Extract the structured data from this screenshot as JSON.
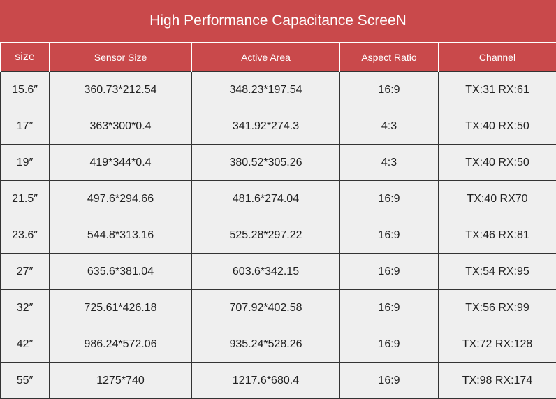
{
  "title": "High Performance Capacitance ScreeN",
  "headers": [
    "size",
    "Sensor  Size",
    "Active Area",
    "Aspect Ratio",
    "Channel"
  ],
  "rows": [
    [
      "15.6″",
      "360.73*212.54",
      "348.23*197.54",
      "16:9",
      "TX:31  RX:61"
    ],
    [
      "17″",
      "363*300*0.4",
      "341.92*274.3",
      "4:3",
      "TX:40  RX:50"
    ],
    [
      "19″",
      "419*344*0.4",
      "380.52*305.26",
      "4:3",
      "TX:40  RX:50"
    ],
    [
      "21.5″",
      "497.6*294.66",
      "481.6*274.04",
      "16:9",
      "TX:40  RX70"
    ],
    [
      "23.6″",
      "544.8*313.16",
      "525.28*297.22",
      "16:9",
      "TX:46  RX:81"
    ],
    [
      "27″",
      "635.6*381.04",
      "603.6*342.15",
      "16:9",
      "TX:54  RX:95"
    ],
    [
      "32″",
      "725.61*426.18",
      "707.92*402.58",
      "16:9",
      "TX:56  RX:99"
    ],
    [
      "42″",
      "986.24*572.06",
      "935.24*528.26",
      "16:9",
      "TX:72  RX:128"
    ],
    [
      "55″",
      "1275*740",
      "1217.6*680.4",
      "16:9",
      "TX:98  RX:174"
    ]
  ],
  "colors": {
    "header_bg": "#c9494b",
    "cell_bg": "#efefef",
    "border": "#333333"
  }
}
